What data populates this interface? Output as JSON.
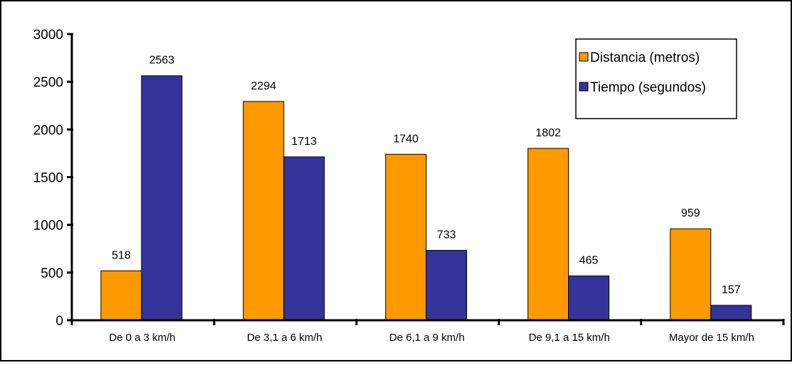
{
  "chart_data": {
    "type": "bar",
    "categories": [
      "De 0 a 3 km/h",
      "De 3,1 a 6 km/h",
      "De 6,1 a 9 km/h",
      "De 9,1 a 15 km/h",
      "Mayor de 15 km/h"
    ],
    "series": [
      {
        "name": "Distancia (metros)",
        "values": [
          518,
          2294,
          1740,
          1802,
          959
        ],
        "color": "#ff9900"
      },
      {
        "name": "Tiempo (segundos)",
        "values": [
          2563,
          1713,
          733,
          465,
          157
        ],
        "color": "#333399"
      }
    ],
    "title": "",
    "xlabel": "",
    "ylabel": "",
    "ylim": [
      0,
      3000
    ],
    "yticks": [
      0,
      500,
      1000,
      1500,
      2000,
      2500,
      3000
    ],
    "data_labels": true,
    "grid": false,
    "legend_position": "top-right"
  }
}
